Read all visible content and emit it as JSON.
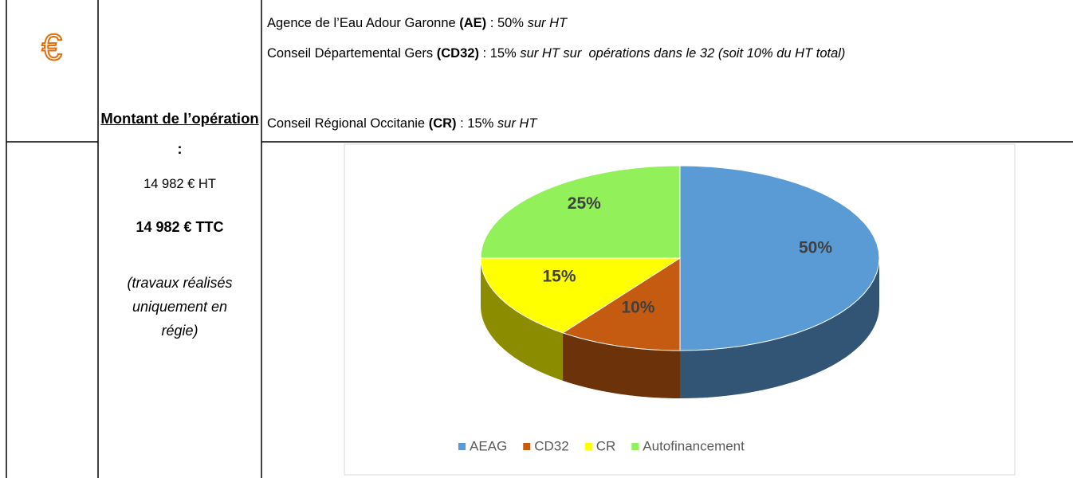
{
  "icon": "€",
  "amount": {
    "heading": "Montant de l’opération",
    "colon": " :",
    "ht": "14 982 € HT",
    "ttc": "14 982 € TTC",
    "note": "(travaux réalisés uniquement en régie)"
  },
  "funders": [
    {
      "name": "Agence de l’Eau Adour Garonne ",
      "code": "(AE)",
      "rate": " : 50% ",
      "note": "sur HT"
    },
    {
      "name": "Conseil Départemental Gers ",
      "code": "(CD32)",
      "rate": " : 15% ",
      "note": "sur HT sur  opérations dans le 32 (soit 10% du HT total)"
    },
    {
      "name": "Conseil Régional Occitanie ",
      "code": "(CR)",
      "rate": " : 15% ",
      "note": "sur HT"
    }
  ],
  "chart_data": {
    "type": "pie",
    "categories": [
      "AEAG",
      "CD32",
      "CR",
      "Autofinancement"
    ],
    "values": [
      50,
      10,
      15,
      25
    ],
    "value_labels": [
      "50%",
      "10%",
      "15%",
      "25%"
    ],
    "colors": [
      "#5b9bd5",
      "#c55a11",
      "#ffff00",
      "#92f05a"
    ],
    "legend": "bottom"
  }
}
